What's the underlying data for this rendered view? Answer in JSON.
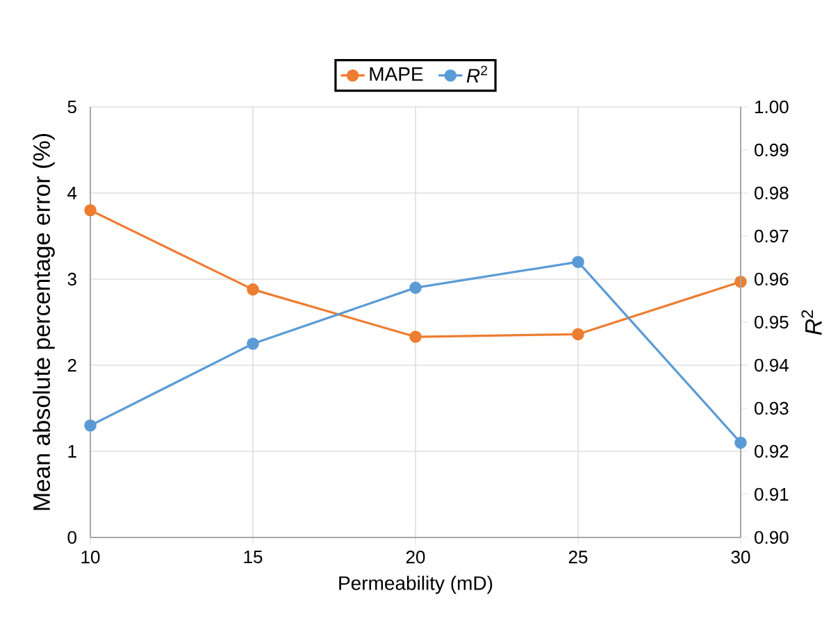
{
  "chart_data": {
    "type": "line",
    "xlabel": "Permeability (mD)",
    "ylabel": "Mean absolute percentage error (%)",
    "y2label": "*R*$^{2}$",
    "x": [
      10,
      15,
      20,
      25,
      30
    ],
    "series": [
      {
        "name": "MAPE",
        "color": "#ed7d31",
        "values": [
          3.8,
          2.88,
          2.33,
          2.36,
          2.97
        ]
      },
      {
        "name": "*R*$^{2}$",
        "color": "#5b9bd5",
        "axis": "y2",
        "values": [
          0.926,
          0.945,
          0.958,
          0.964,
          0.922
        ]
      }
    ],
    "xlim": [
      10,
      30
    ],
    "xticks": [
      10,
      15,
      20,
      25,
      30
    ],
    "ylim": [
      0,
      5
    ],
    "yticks": [
      0,
      1,
      2,
      3,
      4,
      5
    ],
    "y2lim": [
      0.9,
      1.0
    ],
    "y2ticks": [
      {
        "value": 0.9,
        "label": "0.90"
      },
      0.91,
      0.92,
      0.93,
      0.94,
      0.95,
      0.96,
      0.97,
      0.98,
      0.99,
      {
        "value": 1.0,
        "label": "1.00"
      }
    ],
    "grid": true,
    "legend": "top",
    "marker": "circle",
    "line_style": "solid"
  }
}
